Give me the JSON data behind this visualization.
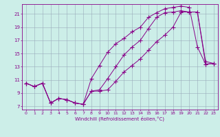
{
  "xlabel": "Windchill (Refroidissement éolien,°C)",
  "bg_color": "#cceee8",
  "line_color": "#880088",
  "grid_color": "#99aabb",
  "xlim": [
    -0.5,
    23.5
  ],
  "ylim": [
    6.5,
    22.5
  ],
  "yticks": [
    7,
    9,
    11,
    13,
    15,
    17,
    19,
    21
  ],
  "xticks": [
    0,
    1,
    2,
    3,
    4,
    5,
    6,
    7,
    8,
    9,
    10,
    11,
    12,
    13,
    14,
    15,
    16,
    17,
    18,
    19,
    20,
    21,
    22,
    23
  ],
  "line1_x": [
    0,
    1,
    2,
    3,
    4,
    5,
    6,
    7,
    8,
    9,
    10,
    11,
    12,
    13,
    14,
    15,
    16,
    17,
    18,
    19,
    20,
    21,
    22,
    23
  ],
  "line1_y": [
    10.5,
    10.0,
    10.5,
    7.5,
    8.2,
    8.0,
    7.5,
    7.3,
    9.3,
    9.3,
    9.5,
    10.8,
    12.2,
    13.2,
    14.2,
    15.5,
    16.8,
    17.8,
    19.0,
    21.3,
    21.3,
    21.3,
    13.8,
    13.5
  ],
  "line2_x": [
    0,
    1,
    2,
    3,
    4,
    5,
    6,
    7,
    8,
    9,
    10,
    11,
    12,
    13,
    14,
    15,
    16,
    17,
    18,
    19,
    20,
    21,
    22,
    23
  ],
  "line2_y": [
    10.5,
    10.0,
    10.5,
    7.5,
    8.2,
    8.0,
    7.5,
    7.3,
    9.3,
    9.5,
    11.2,
    13.0,
    14.8,
    16.0,
    17.0,
    18.8,
    20.5,
    21.2,
    21.3,
    21.5,
    21.3,
    21.3,
    13.4,
    13.5
  ],
  "line3_x": [
    0,
    1,
    2,
    3,
    4,
    5,
    6,
    7,
    8,
    9,
    10,
    11,
    12,
    13,
    14,
    15,
    16,
    17,
    18,
    19,
    20,
    21,
    22,
    23
  ],
  "line3_y": [
    10.5,
    10.0,
    10.5,
    7.5,
    8.2,
    8.0,
    7.5,
    7.3,
    11.2,
    13.2,
    15.2,
    16.5,
    17.3,
    18.3,
    19.0,
    20.5,
    21.2,
    21.8,
    22.0,
    22.2,
    22.0,
    16.0,
    13.4,
    13.5
  ]
}
